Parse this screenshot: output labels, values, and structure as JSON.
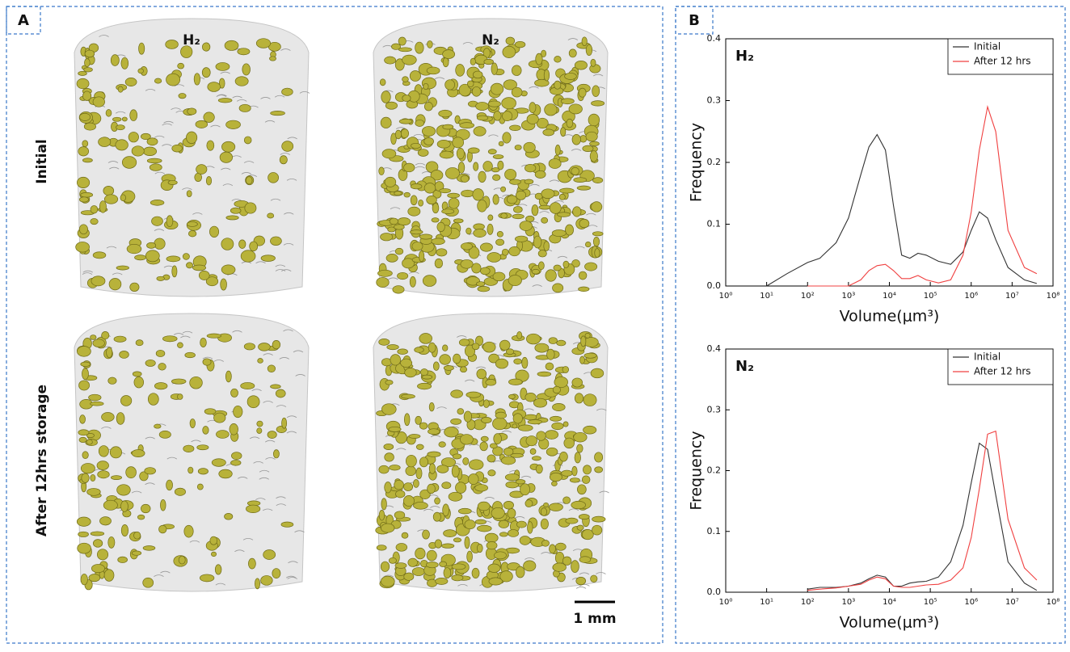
{
  "panel_labels": [
    "A",
    "B"
  ],
  "renders": {
    "columns": [
      "H₂",
      "N₂"
    ],
    "rows": [
      "Initial",
      "After 12hrs storage"
    ],
    "scale_bar": "1 mm"
  },
  "chart_data": [
    {
      "type": "line",
      "title": "H₂",
      "x_label": "Volume(μm³)",
      "y_label": "Frequency",
      "x": [
        10,
        31.6,
        100,
        200,
        500,
        1000,
        2000,
        3160,
        5000,
        8000,
        12600,
        20000,
        31600,
        50000,
        79400,
        158000,
        316000,
        631000,
        1000000,
        1580000,
        2510000,
        3980000,
        7940000,
        20000000,
        40000000
      ],
      "xscale": "log",
      "xlim": [
        1,
        100000000
      ],
      "xticks": [
        {
          "value": 1,
          "label": "10⁰"
        },
        {
          "value": 10,
          "label": "10¹"
        },
        {
          "value": 100,
          "label": "10²"
        },
        {
          "value": 1000,
          "label": "10³"
        },
        {
          "value": 10000,
          "label": "10⁴"
        },
        {
          "value": 100000,
          "label": "10⁵"
        },
        {
          "value": 1000000,
          "label": "10⁶"
        },
        {
          "value": 10000000,
          "label": "10⁷"
        },
        {
          "value": 100000000,
          "label": "10⁸"
        }
      ],
      "ylim": [
        0,
        0.4
      ],
      "yticks": [
        {
          "value": 0,
          "label": "0.0"
        },
        0.1,
        0.2,
        0.3,
        0.4
      ],
      "legend": "upper right",
      "series": [
        {
          "name": "Initial",
          "color": "#333333",
          "values": [
            0,
            0.02,
            0.038,
            0.045,
            0.07,
            0.11,
            0.18,
            0.225,
            0.245,
            0.22,
            0.13,
            0.05,
            0.045,
            0.053,
            0.05,
            0.04,
            0.035,
            0.055,
            0.09,
            0.12,
            0.11,
            0.075,
            0.03,
            0.01,
            0.004
          ]
        },
        {
          "name": "After 12 hrs",
          "color": "#f04040",
          "values": [
            null,
            null,
            0,
            0,
            0,
            0,
            0.01,
            0.025,
            0.033,
            0.035,
            0.025,
            0.012,
            0.012,
            0.017,
            0.01,
            0.005,
            0.01,
            0.05,
            0.12,
            0.22,
            0.29,
            0.25,
            0.09,
            0.03,
            0.02
          ]
        }
      ]
    },
    {
      "type": "line",
      "title": "N₂",
      "x_label": "Volume(μm³)",
      "y_label": "Frequency",
      "x": [
        10,
        31.6,
        100,
        200,
        500,
        1000,
        2000,
        3160,
        5000,
        8000,
        12600,
        20000,
        31600,
        50000,
        79400,
        158000,
        316000,
        631000,
        1000000,
        1580000,
        2510000,
        3980000,
        7940000,
        20000000,
        40000000
      ],
      "xscale": "log",
      "xlim": [
        1,
        100000000
      ],
      "xticks": [
        {
          "value": 1,
          "label": "10⁰"
        },
        {
          "value": 10,
          "label": "10¹"
        },
        {
          "value": 100,
          "label": "10²"
        },
        {
          "value": 1000,
          "label": "10³"
        },
        {
          "value": 10000,
          "label": "10⁴"
        },
        {
          "value": 100000,
          "label": "10⁵"
        },
        {
          "value": 1000000,
          "label": "10⁶"
        },
        {
          "value": 10000000,
          "label": "10⁷"
        },
        {
          "value": 100000000,
          "label": "10⁸"
        }
      ],
      "ylim": [
        0,
        0.4
      ],
      "yticks": [
        {
          "value": 0,
          "label": "0.0"
        },
        0.1,
        0.2,
        0.3,
        0.4
      ],
      "legend": "upper right",
      "series": [
        {
          "name": "Initial",
          "color": "#333333",
          "values": [
            null,
            null,
            0.005,
            0.008,
            0.008,
            0.01,
            0.015,
            0.022,
            0.028,
            0.025,
            0.01,
            0.01,
            0.015,
            0.017,
            0.018,
            0.025,
            0.05,
            0.11,
            0.18,
            0.245,
            0.235,
            0.16,
            0.05,
            0.015,
            0.003
          ]
        },
        {
          "name": "After 12 hrs",
          "color": "#f04040",
          "values": [
            null,
            null,
            0.003,
            0.005,
            0.007,
            0.01,
            0.013,
            0.02,
            0.025,
            0.022,
            0.01,
            0.008,
            0.008,
            0.01,
            0.012,
            0.013,
            0.02,
            0.04,
            0.09,
            0.17,
            0.26,
            0.265,
            0.12,
            0.04,
            0.02
          ]
        }
      ]
    }
  ]
}
